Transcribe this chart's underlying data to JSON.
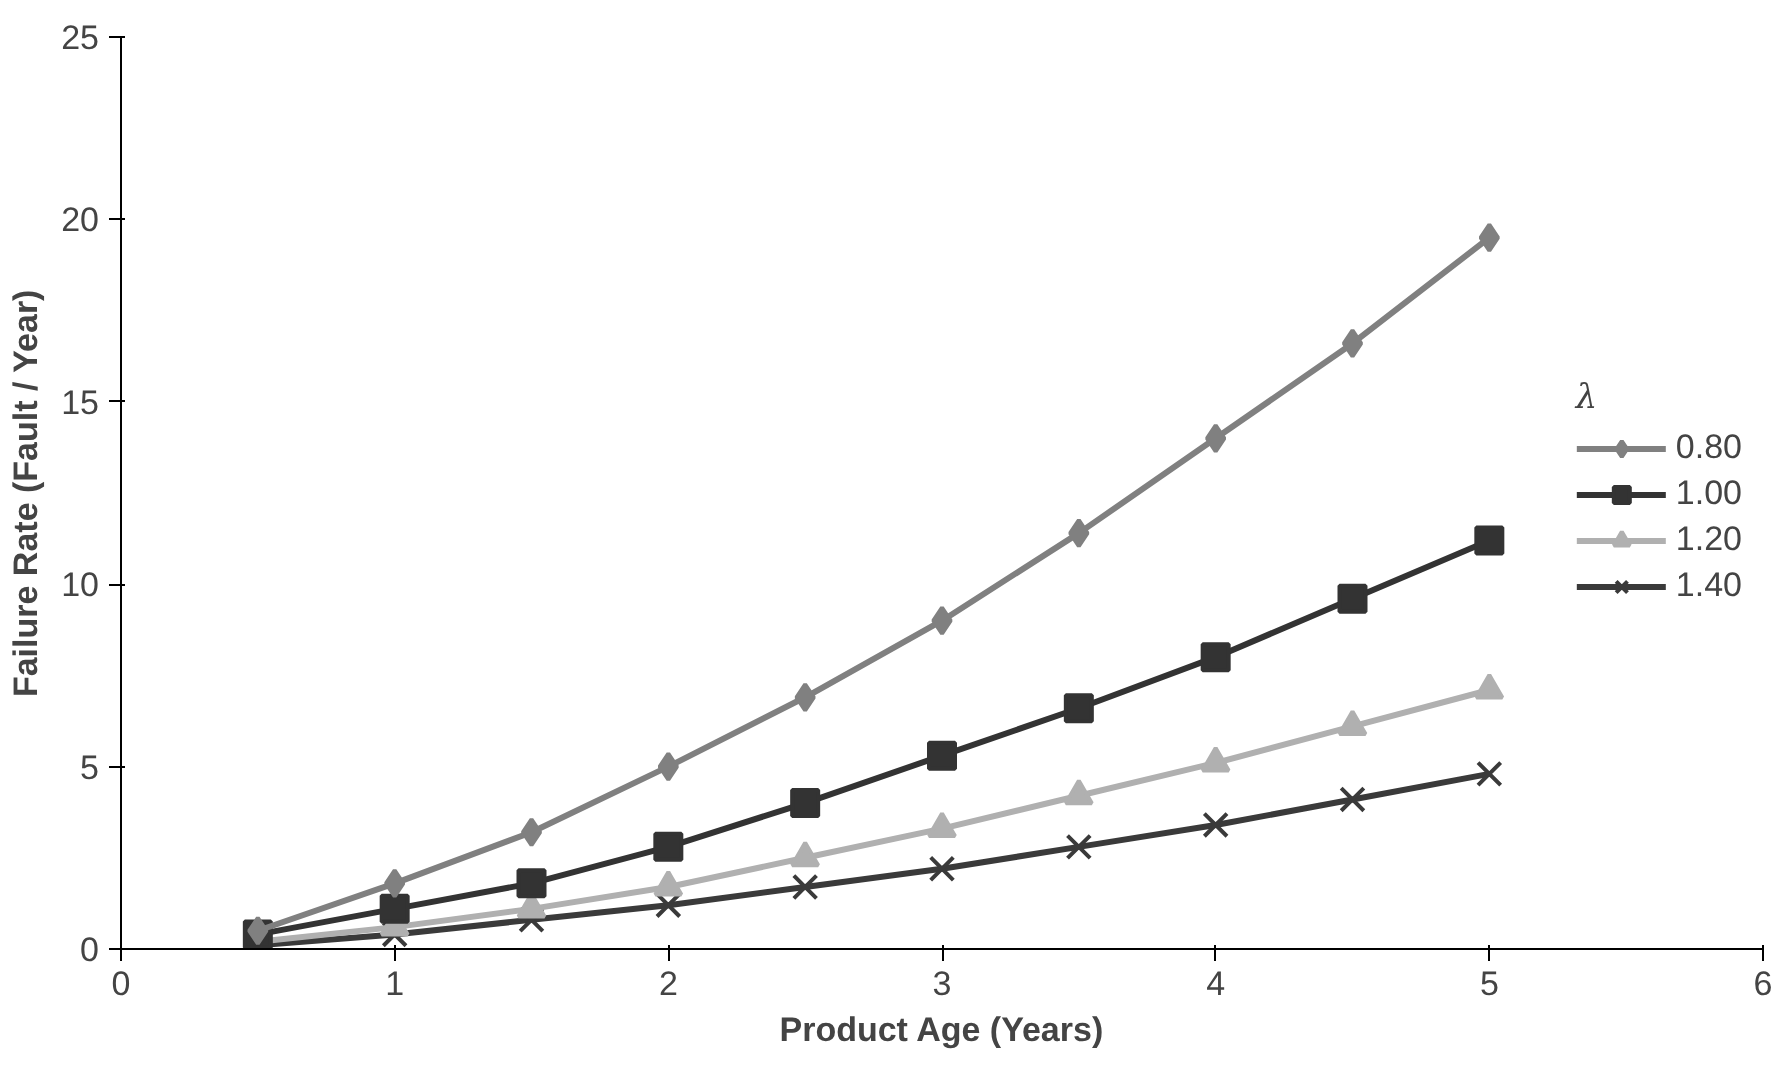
{
  "chart_data": {
    "type": "line",
    "xlabel": "Product Age (Years)",
    "ylabel": "Failure Rate (Fault / Year)",
    "legend_title": "λ",
    "legend": "right",
    "grid": false,
    "x": [
      0.5,
      1,
      1.5,
      2,
      2.5,
      3,
      3.5,
      4,
      4.5,
      5
    ],
    "xlim": [
      0,
      6
    ],
    "xticks": [
      0,
      1,
      2,
      3,
      4,
      5,
      6
    ],
    "ylim": [
      0,
      25
    ],
    "yticks": [
      0,
      5,
      10,
      15,
      20,
      25
    ],
    "series": [
      {
        "name": "0.80",
        "color": "#808080",
        "marker": "diamond",
        "values": [
          0.5,
          1.8,
          3.2,
          5.0,
          6.9,
          9.0,
          11.4,
          14.0,
          16.6,
          19.5
        ]
      },
      {
        "name": "1.00",
        "color": "#333333",
        "marker": "square",
        "values": [
          0.4,
          1.1,
          1.8,
          2.8,
          4.0,
          5.3,
          6.6,
          8.0,
          9.6,
          11.2
        ]
      },
      {
        "name": "1.20",
        "color": "#b0b0b0",
        "marker": "triangle",
        "values": [
          0.2,
          0.6,
          1.1,
          1.7,
          2.5,
          3.3,
          4.2,
          5.1,
          6.1,
          7.1
        ]
      },
      {
        "name": "1.40",
        "color": "#3a3a3a",
        "marker": "cross",
        "values": [
          0.1,
          0.4,
          0.8,
          1.2,
          1.7,
          2.2,
          2.8,
          3.4,
          4.1,
          4.8
        ]
      }
    ]
  }
}
